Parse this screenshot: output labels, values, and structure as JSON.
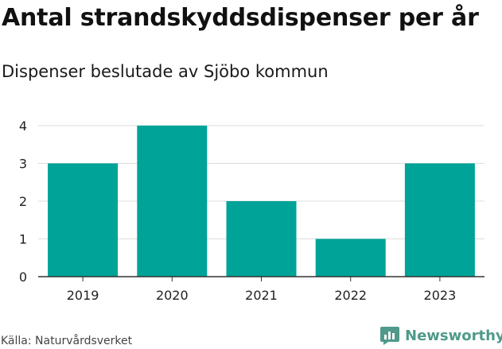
{
  "header": {
    "title": "Antal strandskyddsdispenser per år",
    "subtitle": "Dispenser beslutade av Sjöbo kommun"
  },
  "footer": {
    "source": "Källa: Naturvårdsverket",
    "brand": "Newsworthy",
    "brand_icon": "newsworthy-logo-icon"
  },
  "colors": {
    "bar": "#00a398",
    "grid": "#dddddd",
    "axis": "#333333",
    "brand": "#4f9a8a"
  },
  "chart_data": {
    "type": "bar",
    "title": "Antal strandskyddsdispenser per år",
    "subtitle": "Dispenser beslutade av Sjöbo kommun",
    "categories": [
      "2019",
      "2020",
      "2021",
      "2022",
      "2023"
    ],
    "values": [
      3,
      4,
      2,
      1,
      3
    ],
    "ylim": [
      0,
      4
    ],
    "yticks": [
      "0",
      "1",
      "2",
      "3",
      "4"
    ],
    "grid": true,
    "xlabel": "",
    "ylabel": ""
  }
}
